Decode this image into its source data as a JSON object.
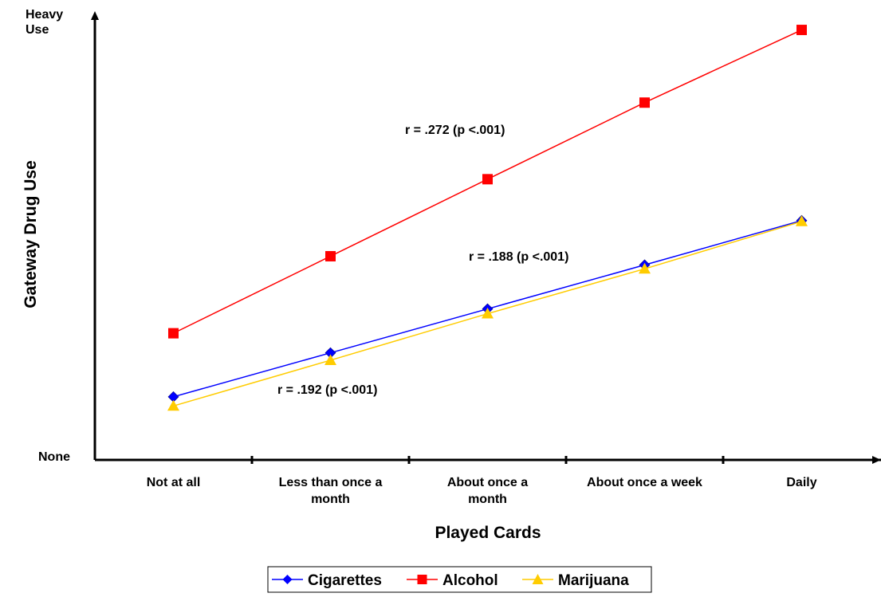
{
  "chart_data": {
    "type": "line",
    "xlabel": "Played Cards",
    "ylabel": "Gateway Drug Use",
    "y_top_label": [
      "Heavy",
      "Use"
    ],
    "y_bottom_label": "None",
    "ylim": [
      0,
      100
    ],
    "categories": [
      [
        "Not at all"
      ],
      [
        "Less than once a",
        "month"
      ],
      [
        "About once a",
        "month"
      ],
      [
        "About once a week"
      ],
      [
        "Daily"
      ]
    ],
    "series": [
      {
        "name": "Cigarettes",
        "color": "#0000ff",
        "marker": "diamond",
        "values": [
          14.5,
          24.6,
          34.7,
          44.8,
          55.0
        ]
      },
      {
        "name": "Alcohol",
        "color": "#ff0000",
        "marker": "square",
        "values": [
          29.1,
          46.8,
          64.5,
          82.1,
          98.8
        ]
      },
      {
        "name": "Marijuana",
        "color": "#ffcc00",
        "marker": "triangle",
        "values": [
          12.4,
          22.9,
          33.6,
          43.9,
          54.8
        ]
      }
    ],
    "annotations": [
      {
        "text": "r = .272 (p <.001)",
        "series": "Alcohol"
      },
      {
        "text": "r = .188 (p <.001)",
        "series": "Cigarettes"
      },
      {
        "text": "r = .192 (p <.001)",
        "series": "Marijuana"
      }
    ],
    "legend_position": "bottom",
    "grid": false
  }
}
